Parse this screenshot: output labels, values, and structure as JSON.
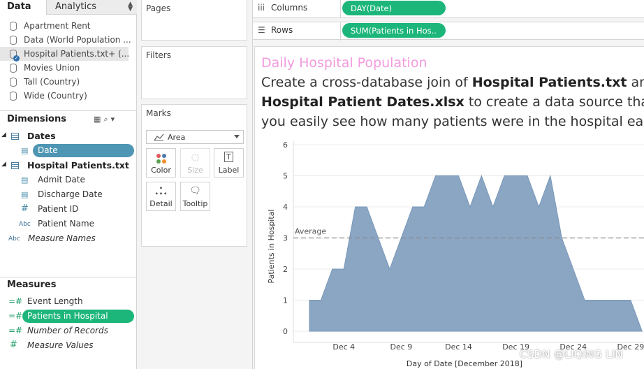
{
  "tabs": {
    "data": "Data",
    "analytics": "Analytics"
  },
  "data_sources": [
    {
      "label": "Apartment Rent",
      "selected": false
    },
    {
      "label": "Data (World Population ...",
      "selected": false
    },
    {
      "label": "Hospital Patients.txt+ (...",
      "selected": true
    },
    {
      "label": "Movies Union",
      "selected": false
    },
    {
      "label": "Tall (Country)",
      "selected": false
    },
    {
      "label": "Wide (Country)",
      "selected": false
    }
  ],
  "dimensions": {
    "header": "Dimensions",
    "groups": [
      {
        "label": "Dates",
        "fields": [
          {
            "label": "Date",
            "icon": "calendar-icon",
            "highlighted": true
          }
        ]
      },
      {
        "label": "Hospital Patients.txt",
        "fields": [
          {
            "label": "Admit Date",
            "icon": "calendar-icon"
          },
          {
            "label": "Discharge Date",
            "icon": "calendar-icon"
          },
          {
            "label": "Patient ID",
            "icon": "hash-icon"
          },
          {
            "label": "Patient Name",
            "icon": "abc-icon"
          }
        ]
      }
    ],
    "extra": {
      "label": "Measure Names",
      "icon": "abc-icon"
    }
  },
  "measures": {
    "header": "Measures",
    "fields": [
      {
        "label": "Event Length",
        "icon": "hash-icon"
      },
      {
        "label": "Patients in Hospital",
        "icon": "hash-icon",
        "highlighted": true
      },
      {
        "label": "Number of Records",
        "icon": "hash-icon",
        "italic": true
      },
      {
        "label": "Measure Values",
        "icon": "hash-icon",
        "italic": true
      }
    ]
  },
  "cards": {
    "pages": "Pages",
    "filters": "Filters",
    "marks": "Marks",
    "mark_type": "Area",
    "buttons": [
      "Color",
      "Size",
      "Label",
      "Detail",
      "Tooltip"
    ]
  },
  "shelves": {
    "columns_label": "Columns",
    "columns_pill": "DAY(Date)",
    "rows_label": "Rows",
    "rows_pill": "SUM(Patients in Hos.."
  },
  "sheet": {
    "title": "Daily Hospital Population",
    "caption_line1_a": "Create a cross-database join of ",
    "caption_line1_b": "Hospital Patients.txt",
    "caption_line1_c": " and",
    "caption_line2_a": "Hospital Patient Dates.xlsx",
    "caption_line2_b": " to create a data source that let",
    "caption_line3": "you easily see how many patients were in the hospital each"
  },
  "colors": {
    "area_fill": "#8aa6c3",
    "area_stroke": "#7897b8",
    "pill_green": "#1db67a",
    "pill_blue": "#4e96b3",
    "title_pink": "#f29bdf"
  },
  "watermark": "CSDN @LIQING LIN",
  "chart_data": {
    "type": "area",
    "ylabel": "Patients in Hospital",
    "xlabel": "Day of Date [December 2018]",
    "ylim": [
      0,
      6
    ],
    "yticks": [
      0,
      1,
      2,
      3,
      4,
      5,
      6
    ],
    "xticks": [
      "Dec 4",
      "Dec 9",
      "Dec 14",
      "Dec 19",
      "Dec 24",
      "Dec 29"
    ],
    "xtick_days": [
      4,
      9,
      14,
      19,
      24,
      29
    ],
    "x": [
      1,
      2,
      3,
      4,
      5,
      6,
      7,
      8,
      9,
      10,
      11,
      12,
      13,
      14,
      15,
      16,
      17,
      18,
      19,
      20,
      21,
      22,
      23,
      24,
      25,
      26,
      27,
      28,
      29,
      30
    ],
    "values": [
      1,
      1,
      2,
      2,
      4,
      4,
      3,
      2,
      3,
      4,
      4,
      5,
      5,
      5,
      4,
      5,
      4,
      5,
      5,
      5,
      4,
      5,
      3,
      2,
      1,
      1,
      1,
      1,
      1,
      0
    ],
    "reference_line": {
      "label": "Average",
      "value": 3
    },
    "grid": true
  }
}
